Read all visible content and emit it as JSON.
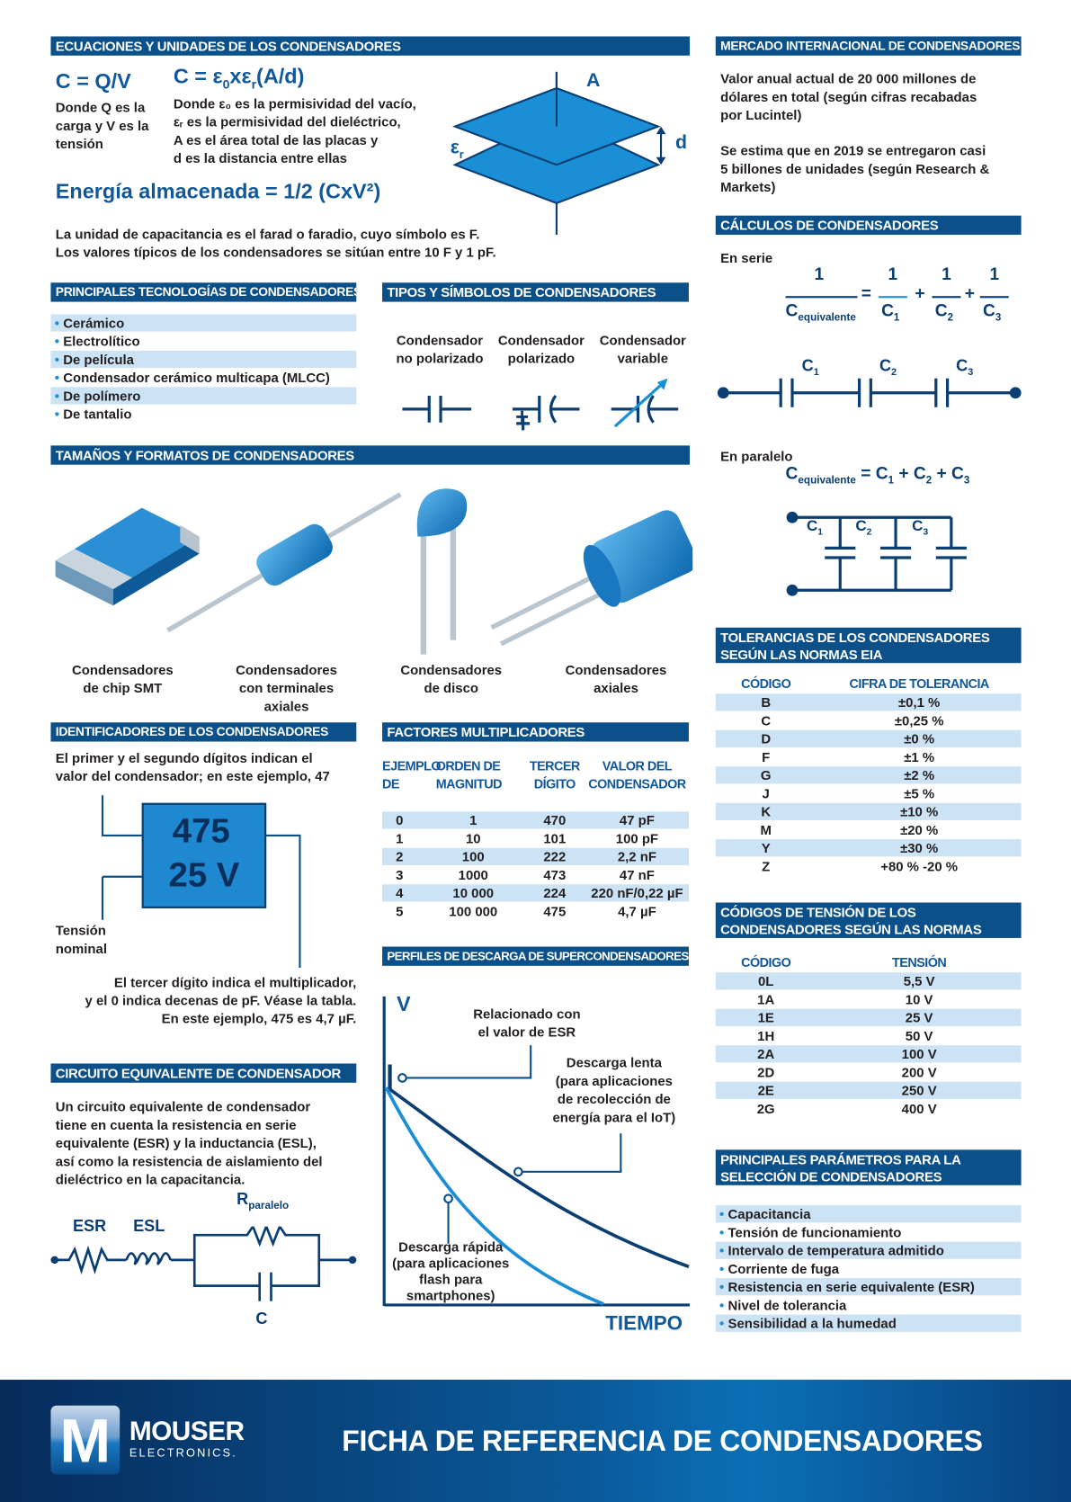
{
  "equations": {
    "header": "ECUACIONES Y UNIDADES DE LOS CONDENSADORES",
    "f1": "C = Q/V",
    "f1_desc": [
      "Donde Q es la",
      "carga y V es la",
      "tensión"
    ],
    "f2_pre": "C = ε",
    "f2_sub0": "0",
    "f2_mid": "xε",
    "f2_subr": "r",
    "f2_post": "(A/d)",
    "f2_desc": [
      "Donde ε₀ es la permisividad del vacío,",
      "εᵣ es la permisividad del dieléctrico,",
      "A es el área total de las placas y",
      "d es la distancia entre ellas"
    ],
    "energy": "Energía almacenada = 1/2 (CxV²)",
    "units": [
      "La unidad de capacitancia es el farad o faradio, cuyo símbolo es F.",
      "Los valores típicos de los condensadores se sitúan entre 10 F y 1 pF."
    ],
    "diagram": {
      "a": "A",
      "d": "d",
      "er": "ε",
      "er_sub": "r"
    }
  },
  "market": {
    "header": "MERCADO INTERNACIONAL DE CONDENSADORES",
    "p1": [
      "Valor anual actual de 20 000 millones de",
      "dólares en total (según cifras recabadas",
      "por Lucintel)"
    ],
    "p2": [
      "Se estima que en 2019 se entregaron casi",
      "5 billones de unidades (según Research &",
      "Markets)"
    ]
  },
  "calc": {
    "header": "CÁLCULOS DE CONDENSADORES",
    "series": "En serie",
    "parallel": "En paralelo",
    "one": "1",
    "ceq": "C",
    "eq_sub": "equivalente",
    "c": "C",
    "s1": "1",
    "s2": "2",
    "s3": "3",
    "eq": "=",
    "plus": "+"
  },
  "tech": {
    "header": "PRINCIPALES TECNOLOGÍAS DE CONDENSADORES",
    "items": [
      "Cerámico",
      "Electrolítico",
      "De película",
      "Condensador cerámico multicapa (MLCC)",
      "De polímero",
      "De tantalio"
    ]
  },
  "types": {
    "header": "TIPOS Y SÍMBOLOS DE CONDENSADORES",
    "items": [
      [
        "Condensador",
        "no polarizado"
      ],
      [
        "Condensador",
        "polarizado"
      ],
      [
        "Condensador",
        "variable"
      ]
    ],
    "plus": "+"
  },
  "sizes": {
    "header": "TAMAÑOS Y FORMATOS DE CONDENSADORES",
    "items": [
      [
        "Condensadores",
        "de chip SMT"
      ],
      [
        "Condensadores",
        "con terminales",
        "axiales"
      ],
      [
        "Condensadores",
        "de disco"
      ],
      [
        "Condensadores",
        "axiales"
      ]
    ]
  },
  "ident": {
    "header": "IDENTIFICADORES DE LOS CONDENSADORES",
    "top": [
      "El primer y el segundo dígitos indican el",
      "valor del condensador; en este ejemplo, 47"
    ],
    "code": "475",
    "voltage": "25 V",
    "nominal": [
      "Tensión",
      "nominal"
    ],
    "bottom": [
      "El tercer dígito indica el multiplicador,",
      "y el 0 indica decenas de pF. Véase la tabla.",
      "En este ejemplo, 475 es 4,7 µF."
    ]
  },
  "mult": {
    "header": "FACTORES MULTIPLICADORES",
    "columns": [
      [
        "EJEMPLO",
        "DE"
      ],
      [
        "ORDEN DE",
        "MAGNITUD"
      ],
      [
        "TERCER",
        "DÍGITO"
      ],
      [
        "VALOR DEL",
        "CONDENSADOR"
      ]
    ],
    "rows": [
      [
        "0",
        "1",
        "470",
        "47 pF"
      ],
      [
        "1",
        "10",
        "101",
        "100 pF"
      ],
      [
        "2",
        "100",
        "222",
        "2,2 nF"
      ],
      [
        "3",
        "1000",
        "473",
        "47 nF"
      ],
      [
        "4",
        "10 000",
        "224",
        "220 nF/0,22 µF"
      ],
      [
        "5",
        "100 000",
        "475",
        "4,7 µF"
      ]
    ]
  },
  "discharge": {
    "header": "PERFILES DE DESCARGA DE SUPERCONDENSADORES",
    "y_label": "V",
    "x_label": "TIEMPO",
    "esr": [
      "Relacionado con",
      "el valor de ESR"
    ],
    "slow": [
      "Descarga lenta",
      "(para aplicaciones",
      "de recolección de",
      "energía para el IoT)"
    ],
    "fast": [
      "Descarga rápida",
      "(para aplicaciones",
      "flash para",
      "smartphones)"
    ],
    "colors": {
      "slow": "#0b3f73",
      "fast": "#1a8fd6"
    }
  },
  "circuit": {
    "header": "CIRCUITO EQUIVALENTE DE CONDENSADOR",
    "text": [
      "Un circuito equivalente de condensador",
      "tiene en cuenta la resistencia en serie",
      "equivalente (ESR) y la inductancia (ESL),",
      "así como la resistencia de aislamiento del",
      "dieléctrico en la capacitancia."
    ],
    "esr": "ESR",
    "esl": "ESL",
    "r": "R",
    "r_sub": "paralelo",
    "c": "C"
  },
  "tolerance": {
    "header": [
      "TOLERANCIAS DE LOS CONDENSADORES",
      "SEGÚN LAS NORMAS EIA"
    ],
    "columns": [
      "CÓDIGO",
      "CIFRA DE TOLERANCIA"
    ],
    "rows": [
      [
        "B",
        "±0,1 %"
      ],
      [
        "C",
        "±0,25 %"
      ],
      [
        "D",
        "±0 %"
      ],
      [
        "F",
        "±1 %"
      ],
      [
        "G",
        "±2 %"
      ],
      [
        "J",
        "±5 %"
      ],
      [
        "K",
        "±10 %"
      ],
      [
        "M",
        "±20 %"
      ],
      [
        "Y",
        "±30 %"
      ],
      [
        "Z",
        "+80 % -20 %"
      ]
    ]
  },
  "voltage": {
    "header": [
      "CÓDIGOS DE TENSIÓN DE LOS",
      "CONDENSADORES SEGÚN LAS NORMAS"
    ],
    "columns": [
      "CÓDIGO",
      "TENSIÓN"
    ],
    "rows": [
      [
        "0L",
        "5,5 V"
      ],
      [
        "1A",
        "10 V"
      ],
      [
        "1E",
        "25 V"
      ],
      [
        "1H",
        "50 V"
      ],
      [
        "2A",
        "100 V"
      ],
      [
        "2D",
        "200 V"
      ],
      [
        "2E",
        "250 V"
      ],
      [
        "2G",
        "400 V"
      ]
    ]
  },
  "params": {
    "header": [
      "PRINCIPALES PARÁMETROS PARA LA",
      "SELECCIÓN DE CONDENSADORES"
    ],
    "items": [
      "Capacitancia",
      "Tensión de funcionamiento",
      "Intervalo de temperatura admitido",
      "Corriente de fuga",
      "Resistencia en serie equivalente (ESR)",
      "Nivel de tolerancia",
      "Sensibilidad a la humedad"
    ]
  },
  "footer": {
    "brand": "MOUSER",
    "brand_sub": "ELECTRONICS.",
    "logo_letter": "M",
    "title": "FICHA DE REFERENCIA DE CONDENSADORES"
  },
  "colors": {
    "header": "#0b5089",
    "accent": "#1a8fd6",
    "row_highlight": "#cce2f5",
    "text_blue": "#11589a"
  }
}
